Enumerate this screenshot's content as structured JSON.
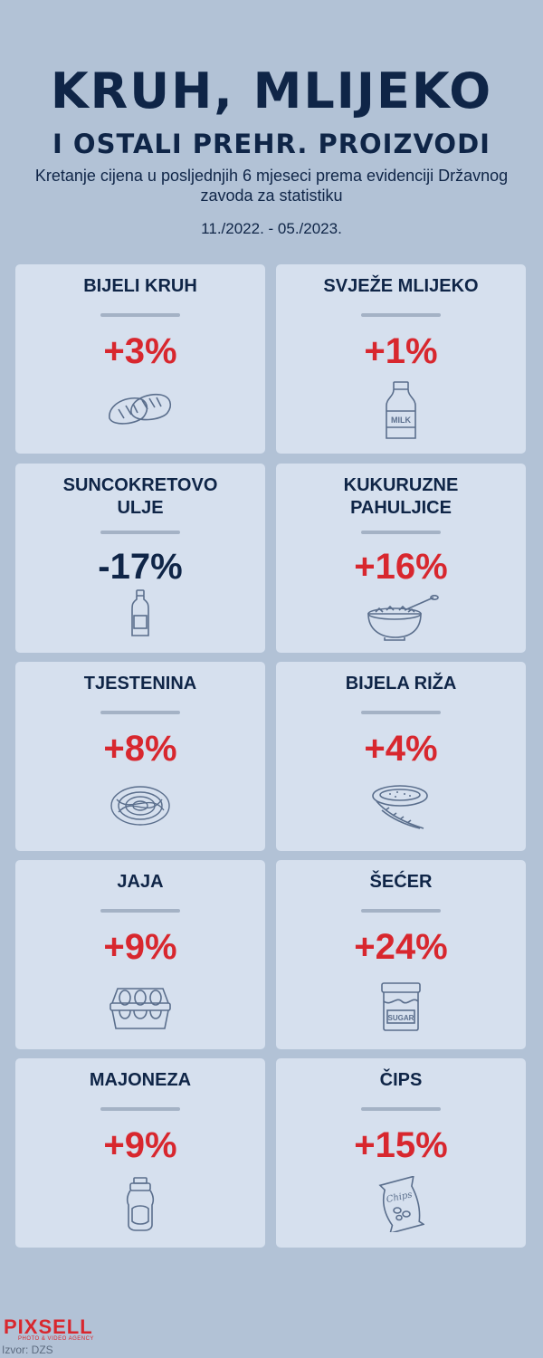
{
  "header": {
    "title_line1": "KRUH, MLIJEKO",
    "title_line2": "I OSTALI PREHR. PROIZVODI",
    "subtitle": "Kretanje cijena u posljednjih 6 mjeseci prema evidenciji Državnog zavoda za statistiku",
    "period": "11./2022. - 05./2023."
  },
  "colors": {
    "background": "#b2c2d6",
    "card": "#d6e0ee",
    "navy": "#0f2547",
    "increase_red": "#d8272e"
  },
  "products": [
    {
      "name": "BIJELI KRUH",
      "change": "+3%",
      "direction": "up",
      "icon": "bread-icon"
    },
    {
      "name": "SVJEŽE MLIJEKO",
      "change": "+1%",
      "direction": "up",
      "icon": "milk-bottle-icon",
      "icon_text": "MILK"
    },
    {
      "name": "SUNCOKRETOVO ULJE",
      "change": "-17%",
      "direction": "down",
      "icon": "oil-bottle-icon"
    },
    {
      "name": "KUKURUZNE PAHULJICE",
      "change": "+16%",
      "direction": "up",
      "icon": "cereal-bowl-icon"
    },
    {
      "name": "TJESTENINA",
      "change": "+8%",
      "direction": "up",
      "icon": "pasta-icon"
    },
    {
      "name": "BIJELA RIŽA",
      "change": "+4%",
      "direction": "up",
      "icon": "rice-icon"
    },
    {
      "name": "JAJA",
      "change": "+9%",
      "direction": "up",
      "icon": "egg-carton-icon"
    },
    {
      "name": "ŠEĆER",
      "change": "+24%",
      "direction": "up",
      "icon": "sugar-jar-icon",
      "icon_text": "SUGAR"
    },
    {
      "name": "MAJONEZA",
      "change": "+9%",
      "direction": "up",
      "icon": "mayonnaise-bottle-icon"
    },
    {
      "name": "ČIPS",
      "change": "+15%",
      "direction": "up",
      "icon": "chips-bag-icon",
      "icon_text": "Chips"
    }
  ],
  "footer": {
    "logo": "PIXSELL",
    "logo_tagline": "PHOTO & VIDEO AGENCY",
    "source": "Izvor: DZS"
  }
}
